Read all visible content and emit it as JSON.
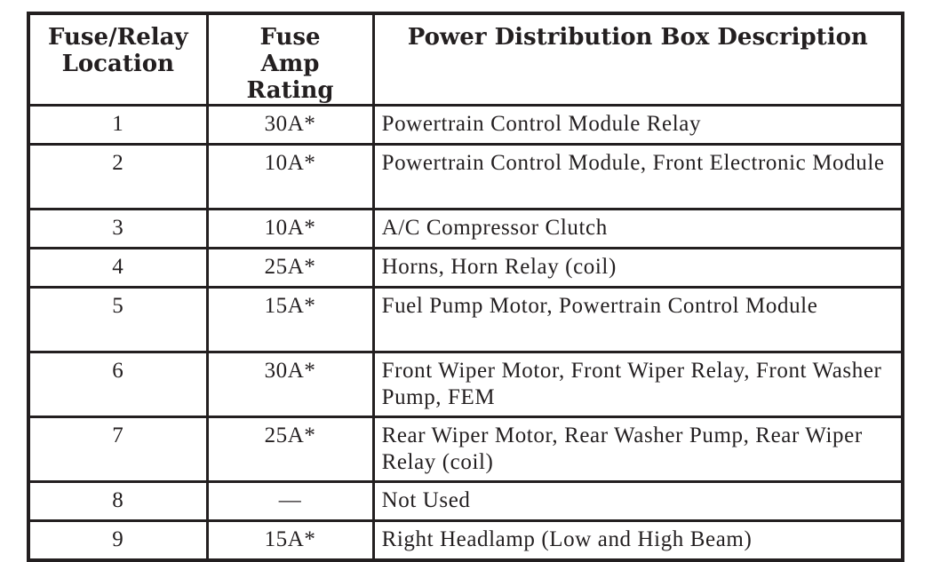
{
  "table": {
    "headers": [
      "Fuse/Relay Location",
      "Fuse Amp Rating",
      "Power Distribution Box Description"
    ],
    "rows": [
      {
        "location": "1",
        "rating": "30A*",
        "description": "Powertrain Control Module Relay"
      },
      {
        "location": "2",
        "rating": "10A*",
        "description": "Powertrain Control Module, Front Electronic Module"
      },
      {
        "location": "3",
        "rating": "10A*",
        "description": "A/C Compressor Clutch"
      },
      {
        "location": "4",
        "rating": "25A*",
        "description": "Horns, Horn Relay (coil)"
      },
      {
        "location": "5",
        "rating": "15A*",
        "description": "Fuel Pump Motor, Powertrain Control Module"
      },
      {
        "location": "6",
        "rating": "30A*",
        "description": "Front Wiper Motor, Front Wiper Relay, Front Washer Pump, FEM"
      },
      {
        "location": "7",
        "rating": "25A*",
        "description": "Rear Wiper Motor, Rear Washer Pump, Rear Wiper Relay (coil)"
      },
      {
        "location": "8",
        "rating": "—",
        "description": "Not Used"
      },
      {
        "location": "9",
        "rating": "15A*",
        "description": "Right Headlamp (Low and High Beam)"
      }
    ]
  }
}
